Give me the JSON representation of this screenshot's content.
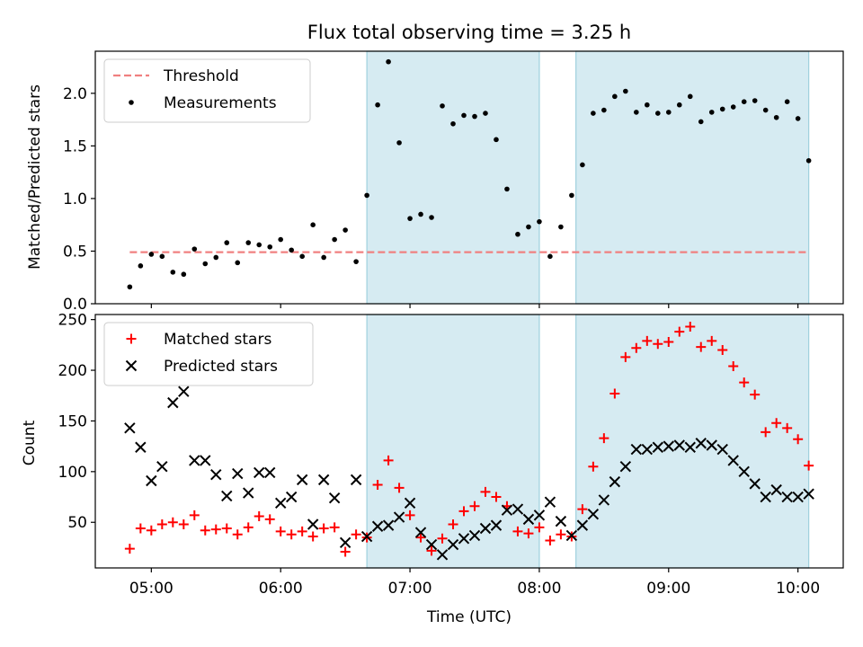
{
  "figure": {
    "title": "Flux total observing time = 3.25 h",
    "xlabel": "Time (UTC)",
    "xticks": [
      "05:00",
      "06:00",
      "07:00",
      "08:00",
      "09:00",
      "10:00"
    ]
  },
  "chart_data": [
    {
      "type": "scatter",
      "title": "Flux total observing time = 3.25 h",
      "xlabel": "",
      "ylabel": "Matched/Predicted stars",
      "xlim": [
        "04:34",
        "10:21"
      ],
      "ylim": [
        0,
        2.4
      ],
      "yticks": [
        "0.0",
        "0.5",
        "1.0",
        "1.5",
        "2.0"
      ],
      "legend_position": "top-left",
      "shaded_intervals": [
        [
          "06:40",
          "08:00"
        ],
        [
          "08:17",
          "10:05"
        ]
      ],
      "threshold": {
        "name": "Threshold",
        "value": 0.49,
        "x_range": [
          "04:50",
          "10:05"
        ],
        "color": "#f08080"
      },
      "series": [
        {
          "name": "Measurements",
          "color": "#000000",
          "points": [
            [
              "04:50",
              0.16
            ],
            [
              "04:55",
              0.36
            ],
            [
              "05:00",
              0.47
            ],
            [
              "05:05",
              0.45
            ],
            [
              "05:10",
              0.3
            ],
            [
              "05:15",
              0.28
            ],
            [
              "05:20",
              0.52
            ],
            [
              "05:25",
              0.38
            ],
            [
              "05:30",
              0.44
            ],
            [
              "05:35",
              0.58
            ],
            [
              "05:40",
              0.39
            ],
            [
              "05:45",
              0.58
            ],
            [
              "05:50",
              0.56
            ],
            [
              "05:55",
              0.54
            ],
            [
              "06:00",
              0.61
            ],
            [
              "06:05",
              0.51
            ],
            [
              "06:10",
              0.45
            ],
            [
              "06:15",
              0.75
            ],
            [
              "06:20",
              0.44
            ],
            [
              "06:25",
              0.61
            ],
            [
              "06:30",
              0.7
            ],
            [
              "06:35",
              0.4
            ],
            [
              "06:40",
              1.03
            ],
            [
              "06:45",
              1.89
            ],
            [
              "06:50",
              2.3
            ],
            [
              "06:55",
              1.53
            ],
            [
              "07:00",
              0.81
            ],
            [
              "07:05",
              0.85
            ],
            [
              "07:10",
              0.82
            ],
            [
              "07:15",
              1.88
            ],
            [
              "07:20",
              1.71
            ],
            [
              "07:25",
              1.79
            ],
            [
              "07:30",
              1.78
            ],
            [
              "07:35",
              1.81
            ],
            [
              "07:40",
              1.56
            ],
            [
              "07:45",
              1.09
            ],
            [
              "07:50",
              0.66
            ],
            [
              "07:55",
              0.73
            ],
            [
              "08:00",
              0.78
            ],
            [
              "08:05",
              0.45
            ],
            [
              "08:10",
              0.73
            ],
            [
              "08:15",
              1.03
            ],
            [
              "08:20",
              1.32
            ],
            [
              "08:25",
              1.81
            ],
            [
              "08:30",
              1.84
            ],
            [
              "08:35",
              1.97
            ],
            [
              "08:40",
              2.02
            ],
            [
              "08:45",
              1.82
            ],
            [
              "08:50",
              1.89
            ],
            [
              "08:55",
              1.81
            ],
            [
              "09:00",
              1.82
            ],
            [
              "09:05",
              1.89
            ],
            [
              "09:10",
              1.97
            ],
            [
              "09:15",
              1.73
            ],
            [
              "09:20",
              1.82
            ],
            [
              "09:25",
              1.85
            ],
            [
              "09:30",
              1.87
            ],
            [
              "09:35",
              1.92
            ],
            [
              "09:40",
              1.93
            ],
            [
              "09:45",
              1.84
            ],
            [
              "09:50",
              1.77
            ],
            [
              "09:55",
              1.92
            ],
            [
              "10:00",
              1.76
            ],
            [
              "10:05",
              1.36
            ]
          ]
        }
      ]
    },
    {
      "type": "scatter",
      "xlabel": "Time (UTC)",
      "ylabel": "Count",
      "xlim": [
        "04:34",
        "10:21"
      ],
      "ylim": [
        5,
        255
      ],
      "yticks": [
        "50",
        "100",
        "150",
        "200",
        "250"
      ],
      "legend_position": "top-left",
      "shaded_intervals": [
        [
          "06:40",
          "08:00"
        ],
        [
          "08:17",
          "10:05"
        ]
      ],
      "series": [
        {
          "name": "Matched stars",
          "color": "#ff0000",
          "marker": "plus",
          "points": [
            [
              "04:50",
              24
            ],
            [
              "04:55",
              44
            ],
            [
              "05:00",
              42
            ],
            [
              "05:05",
              48
            ],
            [
              "05:10",
              50
            ],
            [
              "05:15",
              48
            ],
            [
              "05:20",
              57
            ],
            [
              "05:25",
              42
            ],
            [
              "05:30",
              43
            ],
            [
              "05:35",
              44
            ],
            [
              "05:40",
              38
            ],
            [
              "05:45",
              45
            ],
            [
              "05:50",
              56
            ],
            [
              "05:55",
              53
            ],
            [
              "06:00",
              41
            ],
            [
              "06:05",
              38
            ],
            [
              "06:10",
              41
            ],
            [
              "06:15",
              36
            ],
            [
              "06:20",
              44
            ],
            [
              "06:25",
              45
            ],
            [
              "06:30",
              21
            ],
            [
              "06:35",
              38
            ],
            [
              "06:40",
              35
            ],
            [
              "06:45",
              87
            ],
            [
              "06:50",
              111
            ],
            [
              "06:55",
              84
            ],
            [
              "07:00",
              57
            ],
            [
              "07:05",
              35
            ],
            [
              "07:10",
              22
            ],
            [
              "07:15",
              34
            ],
            [
              "07:20",
              48
            ],
            [
              "07:25",
              61
            ],
            [
              "07:30",
              66
            ],
            [
              "07:35",
              80
            ],
            [
              "07:40",
              75
            ],
            [
              "07:45",
              66
            ],
            [
              "07:50",
              41
            ],
            [
              "07:55",
              39
            ],
            [
              "08:00",
              45
            ],
            [
              "08:05",
              32
            ],
            [
              "08:10",
              38
            ],
            [
              "08:15",
              36
            ],
            [
              "08:20",
              63
            ],
            [
              "08:25",
              105
            ],
            [
              "08:30",
              133
            ],
            [
              "08:35",
              177
            ],
            [
              "08:40",
              213
            ],
            [
              "08:45",
              222
            ],
            [
              "08:50",
              229
            ],
            [
              "08:55",
              226
            ],
            [
              "09:00",
              228
            ],
            [
              "09:05",
              238
            ],
            [
              "09:10",
              243
            ],
            [
              "09:15",
              223
            ],
            [
              "09:20",
              229
            ],
            [
              "09:25",
              220
            ],
            [
              "09:30",
              204
            ],
            [
              "09:35",
              188
            ],
            [
              "09:40",
              176
            ],
            [
              "09:45",
              139
            ],
            [
              "09:50",
              148
            ],
            [
              "09:55",
              143
            ],
            [
              "10:00",
              132
            ],
            [
              "10:05",
              106
            ]
          ]
        },
        {
          "name": "Predicted stars",
          "color": "#000000",
          "marker": "x",
          "points": [
            [
              "04:50",
              143
            ],
            [
              "04:55",
              124
            ],
            [
              "05:00",
              91
            ],
            [
              "05:05",
              105
            ],
            [
              "05:10",
              168
            ],
            [
              "05:15",
              179
            ],
            [
              "05:20",
              111
            ],
            [
              "05:25",
              111
            ],
            [
              "05:30",
              97
            ],
            [
              "05:35",
              76
            ],
            [
              "05:40",
              98
            ],
            [
              "05:45",
              79
            ],
            [
              "05:50",
              99
            ],
            [
              "05:55",
              99
            ],
            [
              "06:00",
              69
            ],
            [
              "06:05",
              75
            ],
            [
              "06:10",
              92
            ],
            [
              "06:15",
              48
            ],
            [
              "06:20",
              92
            ],
            [
              "06:25",
              74
            ],
            [
              "06:30",
              30
            ],
            [
              "06:35",
              92
            ],
            [
              "06:40",
              36
            ],
            [
              "06:45",
              46
            ],
            [
              "06:50",
              47
            ],
            [
              "06:55",
              55
            ],
            [
              "07:00",
              69
            ],
            [
              "07:05",
              40
            ],
            [
              "07:10",
              28
            ],
            [
              "07:15",
              18
            ],
            [
              "07:20",
              28
            ],
            [
              "07:25",
              34
            ],
            [
              "07:30",
              37
            ],
            [
              "07:35",
              44
            ],
            [
              "07:40",
              47
            ],
            [
              "07:45",
              62
            ],
            [
              "07:50",
              63
            ],
            [
              "07:55",
              53
            ],
            [
              "08:00",
              57
            ],
            [
              "08:05",
              70
            ],
            [
              "08:10",
              51
            ],
            [
              "08:15",
              37
            ],
            [
              "08:20",
              47
            ],
            [
              "08:25",
              58
            ],
            [
              "08:30",
              72
            ],
            [
              "08:35",
              90
            ],
            [
              "08:40",
              105
            ],
            [
              "08:45",
              122
            ],
            [
              "08:50",
              122
            ],
            [
              "08:55",
              124
            ],
            [
              "09:00",
              125
            ],
            [
              "09:05",
              126
            ],
            [
              "09:10",
              124
            ],
            [
              "09:15",
              128
            ],
            [
              "09:20",
              126
            ],
            [
              "09:25",
              122
            ],
            [
              "09:30",
              111
            ],
            [
              "09:35",
              100
            ],
            [
              "09:40",
              88
            ],
            [
              "09:45",
              75
            ],
            [
              "09:50",
              82
            ],
            [
              "09:55",
              75
            ],
            [
              "10:00",
              75
            ],
            [
              "10:05",
              78
            ]
          ]
        }
      ]
    }
  ]
}
